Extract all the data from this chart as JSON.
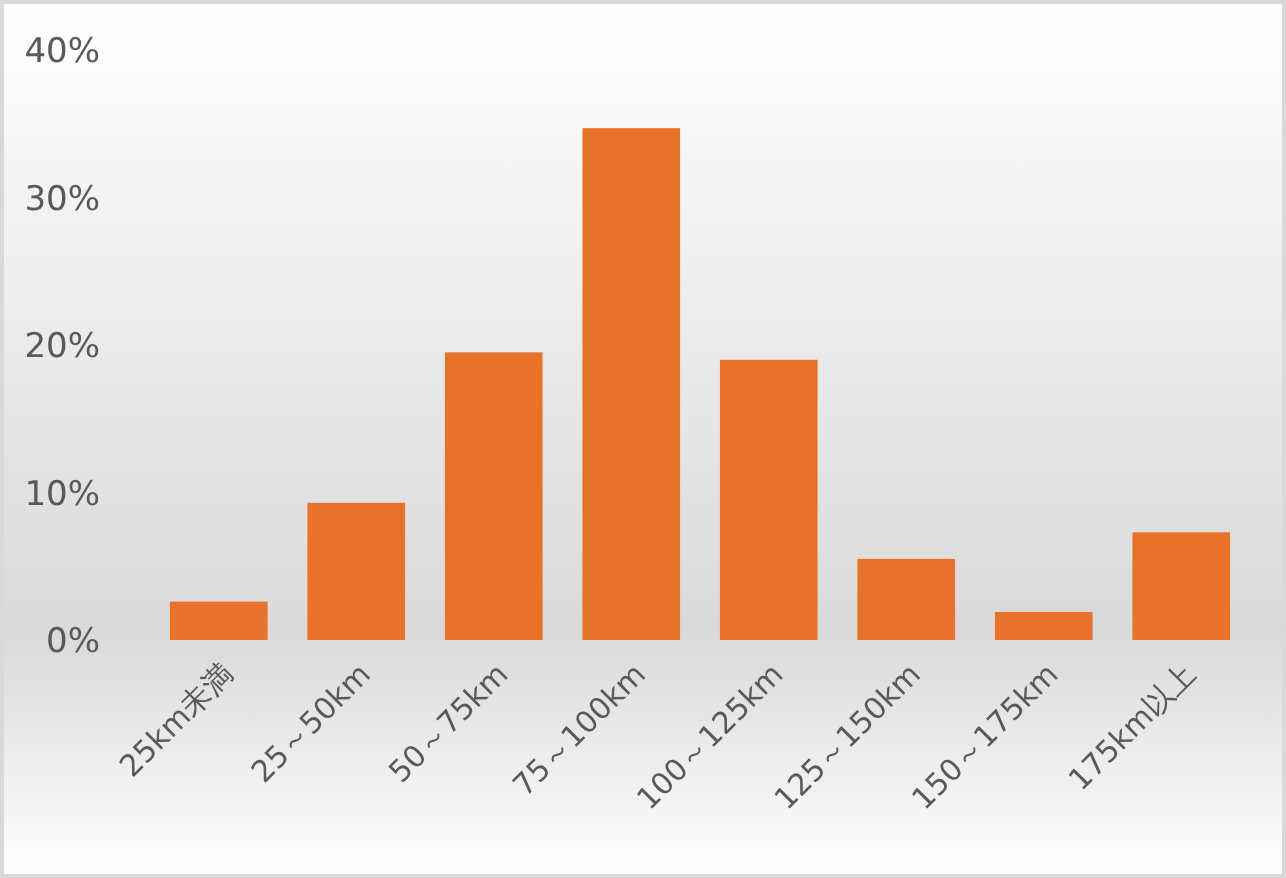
{
  "chart_data": {
    "type": "bar",
    "categories": [
      "25km未満",
      "25～50km",
      "50～75km",
      "75～100km",
      "100～125km",
      "125～150km",
      "150～175km",
      "175km以上"
    ],
    "values": [
      2.6,
      9.3,
      19.5,
      34.7,
      19.0,
      5.5,
      1.9,
      7.3
    ],
    "color": "#e8722a",
    "ylim": [
      0,
      40
    ],
    "yticks": [
      {
        "value": 0,
        "label": "0%"
      },
      {
        "value": 10,
        "label": "10%"
      },
      {
        "value": 20,
        "label": "20%"
      },
      {
        "value": 30,
        "label": "30%"
      },
      {
        "value": 40,
        "label": "40%"
      }
    ],
    "grid": false
  }
}
